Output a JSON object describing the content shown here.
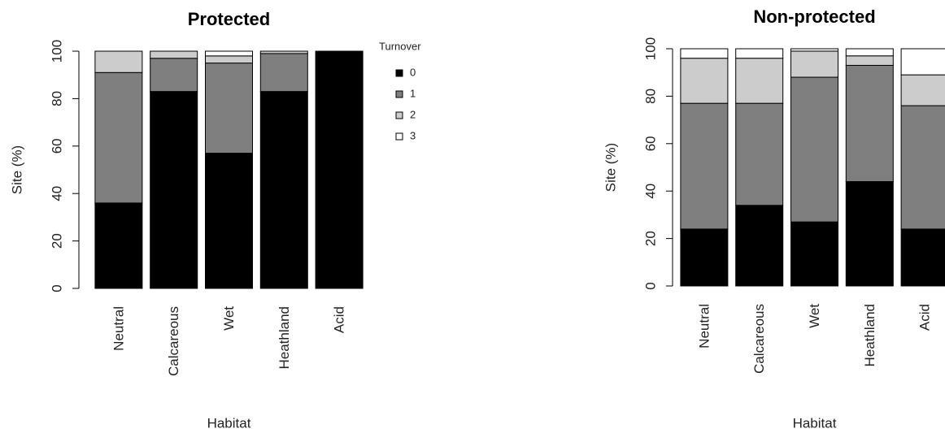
{
  "chart_data": [
    {
      "type": "bar",
      "stacked": true,
      "title": "Protected",
      "x_label": "Habitat",
      "y_label": "Site (%)",
      "categories": [
        "Neutral",
        "Calcareous",
        "Wet",
        "Heathland",
        "Acid"
      ],
      "ylim": [
        0,
        100
      ],
      "yticks": [
        0,
        20,
        40,
        60,
        80,
        100
      ],
      "legend_title": "Turnover",
      "series": [
        {
          "name": "0",
          "color": "#000000",
          "values": [
            36,
            83,
            57,
            83,
            100
          ]
        },
        {
          "name": "1",
          "color": "#7f7f7f",
          "values": [
            55,
            14,
            38,
            16,
            0
          ]
        },
        {
          "name": "2",
          "color": "#cccccc",
          "values": [
            9,
            3,
            3,
            1,
            0
          ]
        },
        {
          "name": "3",
          "color": "#ffffff",
          "values": [
            0,
            0,
            2,
            0,
            0
          ]
        }
      ]
    },
    {
      "type": "bar",
      "stacked": true,
      "title": "Non-protected",
      "x_label": "Habitat",
      "y_label": "Site (%)",
      "categories": [
        "Neutral",
        "Calcareous",
        "Wet",
        "Heathland",
        "Acid"
      ],
      "ylim": [
        0,
        100
      ],
      "yticks": [
        0,
        20,
        40,
        60,
        80,
        100
      ],
      "series": [
        {
          "color": "#000000",
          "values": [
            24,
            34,
            27,
            44,
            24
          ]
        },
        {
          "color": "#7f7f7f",
          "values": [
            53,
            43,
            61,
            49,
            52
          ]
        },
        {
          "color": "#cccccc",
          "values": [
            19,
            19,
            11,
            4,
            13
          ]
        },
        {
          "color": "#ffffff",
          "values": [
            4,
            4,
            1,
            3,
            11
          ]
        }
      ]
    }
  ]
}
